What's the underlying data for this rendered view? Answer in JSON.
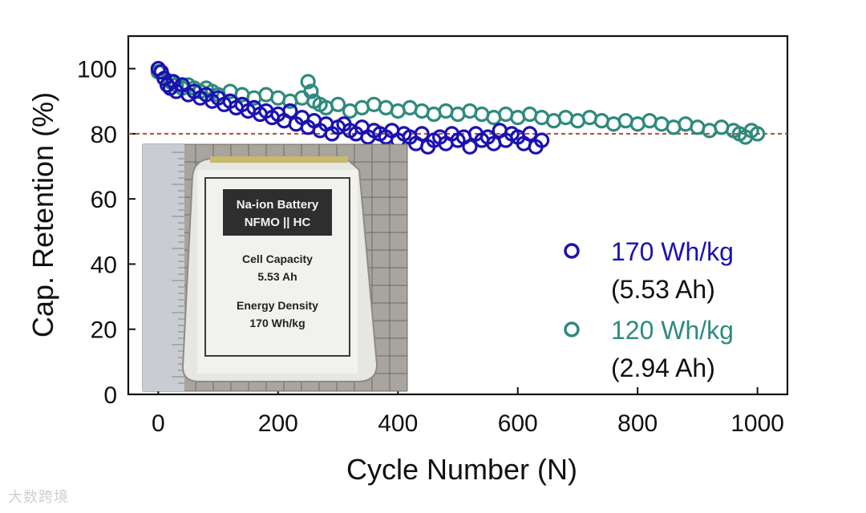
{
  "chart_data": {
    "type": "scatter",
    "title": "",
    "xlabel": "Cycle Number (N)",
    "ylabel": "Cap. Retention (%)",
    "xlim": [
      -50,
      1050
    ],
    "ylim": [
      0,
      110
    ],
    "xticks": [
      "0",
      "200",
      "400",
      "600",
      "800",
      "1000"
    ],
    "yticks": [
      "0",
      "20",
      "40",
      "60",
      "80",
      "100"
    ],
    "reference_line": {
      "y": 80,
      "style": "dashed",
      "color": "#b5473c"
    },
    "legend_position": "bottom-right",
    "series": [
      {
        "name": "170 Wh/kg",
        "sublabel": "(5.53 Ah)",
        "color": "#1a12b0",
        "x": [
          0,
          5,
          10,
          15,
          20,
          25,
          30,
          40,
          50,
          60,
          70,
          80,
          90,
          100,
          110,
          120,
          130,
          140,
          150,
          160,
          170,
          180,
          190,
          200,
          210,
          220,
          230,
          240,
          250,
          260,
          270,
          280,
          290,
          300,
          310,
          320,
          330,
          340,
          350,
          360,
          370,
          380,
          390,
          400,
          410,
          420,
          430,
          440,
          450,
          460,
          470,
          480,
          490,
          500,
          510,
          520,
          530,
          540,
          550,
          560,
          570,
          580,
          590,
          600,
          610,
          620,
          630,
          640
        ],
        "y": [
          100,
          99,
          97,
          95,
          94,
          96,
          93,
          95,
          92,
          93,
          91,
          92,
          90,
          91,
          89,
          90,
          88,
          89,
          87,
          88,
          86,
          87,
          85,
          86,
          84,
          87,
          83,
          85,
          82,
          84,
          81,
          83,
          80,
          82,
          83,
          81,
          80,
          82,
          79,
          81,
          80,
          79,
          81,
          78,
          80,
          79,
          77,
          80,
          76,
          78,
          79,
          77,
          80,
          78,
          79,
          76,
          80,
          78,
          79,
          77,
          81,
          78,
          80,
          79,
          77,
          80,
          76,
          78
        ]
      },
      {
        "name": "120 Wh/kg",
        "sublabel": "(2.94 Ah)",
        "color": "#2e8a7e",
        "x": [
          0,
          10,
          20,
          30,
          40,
          50,
          60,
          70,
          80,
          90,
          100,
          120,
          140,
          160,
          180,
          200,
          220,
          240,
          250,
          255,
          260,
          270,
          280,
          300,
          320,
          340,
          360,
          380,
          400,
          420,
          440,
          460,
          480,
          500,
          520,
          540,
          560,
          580,
          600,
          620,
          640,
          660,
          680,
          700,
          720,
          740,
          760,
          780,
          800,
          820,
          840,
          860,
          880,
          900,
          920,
          940,
          960,
          970,
          980,
          990,
          1000
        ],
        "y": [
          99,
          97,
          96,
          95,
          94,
          95,
          94,
          93,
          94,
          93,
          92,
          93,
          92,
          91,
          92,
          91,
          90,
          91,
          96,
          93,
          90,
          89,
          88,
          89,
          87,
          88,
          89,
          88,
          87,
          88,
          87,
          86,
          87,
          86,
          87,
          86,
          85,
          86,
          85,
          86,
          85,
          84,
          85,
          84,
          85,
          84,
          83,
          84,
          83,
          84,
          83,
          82,
          83,
          82,
          81,
          82,
          81,
          80,
          79,
          81,
          80
        ]
      }
    ],
    "inset_photo": {
      "label_line1": "Na-ion Battery",
      "label_line2": "NFMO || HC",
      "capacity_title": "Cell Capacity",
      "capacity_value": "5.53 Ah",
      "energy_title": "Energy Density",
      "energy_value": "170 Wh/kg"
    }
  },
  "watermark_text": "大数跨境"
}
